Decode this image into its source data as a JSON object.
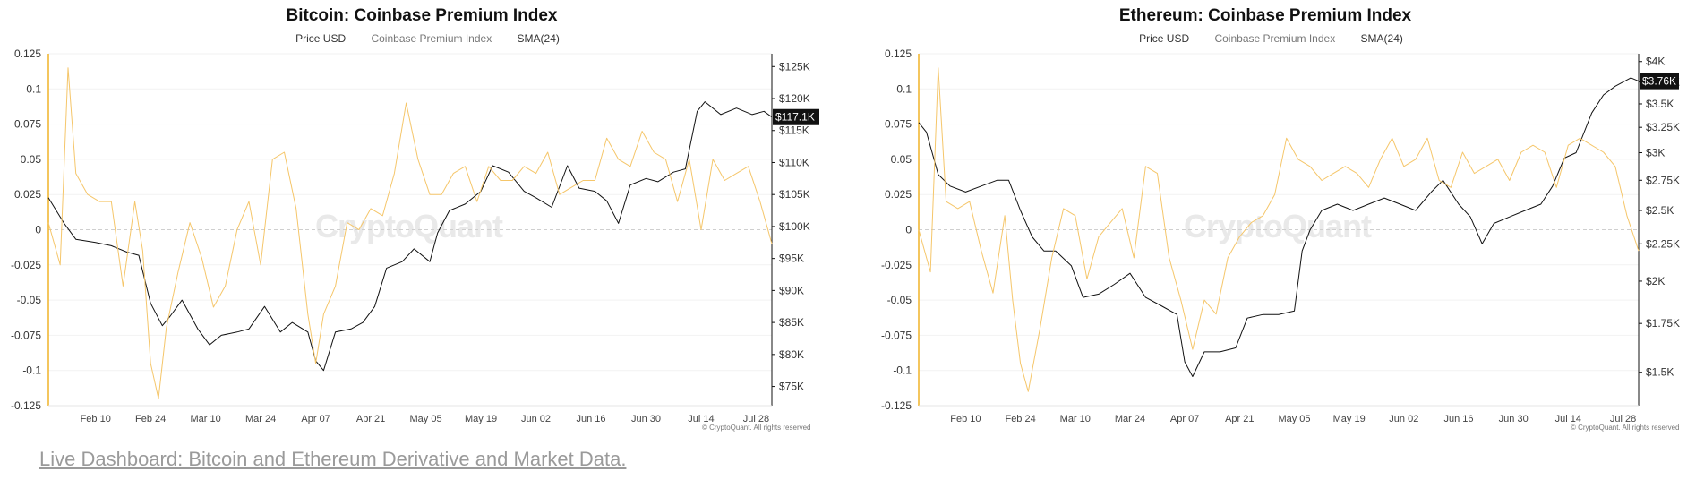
{
  "chart_data": [
    {
      "type": "line",
      "title": "Bitcoin: Coinbase Premium Index",
      "legend": [
        {
          "label": "Price USD",
          "color": "#222222",
          "hidden": false
        },
        {
          "label": "Coinbase Premium Index",
          "color": "#666666",
          "hidden": true
        },
        {
          "label": "SMA(24)",
          "color": "#f5c66a",
          "hidden": false
        }
      ],
      "x_ticks": [
        "Feb 10",
        "Feb 24",
        "Mar 10",
        "Mar 24",
        "Apr 07",
        "Apr 21",
        "May 05",
        "May 19",
        "Jun 02",
        "Jun 16",
        "Jun 30",
        "Jul 14",
        "Jul 28"
      ],
      "x_range": [
        "2025-01-29",
        "2025-08-01"
      ],
      "left_axis_ticks": [
        "0.125",
        "0.1",
        "0.075",
        "0.05",
        "0.025",
        "0",
        "-0.025",
        "-0.05",
        "-0.075",
        "-0.1",
        "-0.125"
      ],
      "left_axis_range": [
        -0.125,
        0.125
      ],
      "right_axis_ticks": [
        "$125K",
        "$120K",
        "$115K",
        "$110K",
        "$105K",
        "$100K",
        "$95K",
        "$90K",
        "$85K",
        "$80K",
        "$75K"
      ],
      "right_axis_range": [
        72000,
        127000
      ],
      "price_label": "$117.1K",
      "watermark": "CryptoQuant",
      "copyright": "© CryptoQuant. All rights reserved",
      "series": [
        {
          "name": "Price USD",
          "axis": "right",
          "color": "#111111",
          "x": [
            "2025-01-29",
            "2025-02-02",
            "2025-02-05",
            "2025-02-10",
            "2025-02-14",
            "2025-02-18",
            "2025-02-21",
            "2025-02-24",
            "2025-02-27",
            "2025-03-01",
            "2025-03-04",
            "2025-03-08",
            "2025-03-11",
            "2025-03-14",
            "2025-03-18",
            "2025-03-21",
            "2025-03-25",
            "2025-03-29",
            "2025-04-01",
            "2025-04-05",
            "2025-04-07",
            "2025-04-09",
            "2025-04-12",
            "2025-04-16",
            "2025-04-19",
            "2025-04-22",
            "2025-04-25",
            "2025-04-29",
            "2025-05-02",
            "2025-05-06",
            "2025-05-08",
            "2025-05-11",
            "2025-05-15",
            "2025-05-19",
            "2025-05-22",
            "2025-05-26",
            "2025-05-30",
            "2025-06-02",
            "2025-06-06",
            "2025-06-10",
            "2025-06-13",
            "2025-06-17",
            "2025-06-20",
            "2025-06-23",
            "2025-06-26",
            "2025-06-30",
            "2025-07-03",
            "2025-07-07",
            "2025-07-10",
            "2025-07-13",
            "2025-07-15",
            "2025-07-19",
            "2025-07-23",
            "2025-07-27",
            "2025-07-30",
            "2025-08-01"
          ],
          "values": [
            104500,
            100500,
            98000,
            97500,
            97000,
            96000,
            95500,
            88000,
            84500,
            86000,
            88500,
            84000,
            81500,
            83000,
            83500,
            84000,
            87500,
            83500,
            85000,
            83500,
            79000,
            77500,
            83500,
            84000,
            85000,
            87500,
            93500,
            94500,
            96500,
            94500,
            99000,
            102500,
            103500,
            105500,
            109500,
            108500,
            105500,
            104500,
            103000,
            109500,
            106000,
            105500,
            104000,
            100500,
            106500,
            107500,
            107000,
            108500,
            109000,
            118000,
            119500,
            117500,
            118500,
            117500,
            118000,
            117100
          ]
        },
        {
          "name": "SMA(24)",
          "axis": "left",
          "color": "#f5c66a",
          "x": [
            "2025-01-29",
            "2025-02-01",
            "2025-02-03",
            "2025-02-05",
            "2025-02-08",
            "2025-02-11",
            "2025-02-14",
            "2025-02-17",
            "2025-02-20",
            "2025-02-22",
            "2025-02-24",
            "2025-02-26",
            "2025-02-28",
            "2025-03-03",
            "2025-03-06",
            "2025-03-09",
            "2025-03-12",
            "2025-03-15",
            "2025-03-18",
            "2025-03-21",
            "2025-03-24",
            "2025-03-27",
            "2025-03-30",
            "2025-04-02",
            "2025-04-05",
            "2025-04-07",
            "2025-04-09",
            "2025-04-12",
            "2025-04-15",
            "2025-04-18",
            "2025-04-21",
            "2025-04-24",
            "2025-04-27",
            "2025-04-30",
            "2025-05-03",
            "2025-05-06",
            "2025-05-09",
            "2025-05-12",
            "2025-05-15",
            "2025-05-18",
            "2025-05-21",
            "2025-05-24",
            "2025-05-27",
            "2025-05-30",
            "2025-06-02",
            "2025-06-05",
            "2025-06-08",
            "2025-06-11",
            "2025-06-14",
            "2025-06-17",
            "2025-06-20",
            "2025-06-23",
            "2025-06-26",
            "2025-06-29",
            "2025-07-02",
            "2025-07-05",
            "2025-07-08",
            "2025-07-11",
            "2025-07-14",
            "2025-07-17",
            "2025-07-20",
            "2025-07-23",
            "2025-07-26",
            "2025-07-29",
            "2025-08-01"
          ],
          "values": [
            0.005,
            -0.025,
            0.115,
            0.04,
            0.025,
            0.02,
            0.02,
            -0.04,
            0.02,
            -0.015,
            -0.095,
            -0.12,
            -0.07,
            -0.03,
            0.005,
            -0.02,
            -0.055,
            -0.04,
            0.0,
            0.02,
            -0.025,
            0.05,
            0.055,
            0.015,
            -0.06,
            -0.095,
            -0.06,
            -0.04,
            0.005,
            0.0,
            0.015,
            0.01,
            0.04,
            0.09,
            0.05,
            0.025,
            0.025,
            0.04,
            0.045,
            0.02,
            0.045,
            0.035,
            0.035,
            0.045,
            0.04,
            0.055,
            0.025,
            0.03,
            0.035,
            0.035,
            0.065,
            0.05,
            0.045,
            0.07,
            0.055,
            0.05,
            0.02,
            0.05,
            0.0,
            0.05,
            0.035,
            0.04,
            0.045,
            0.02,
            -0.01
          ]
        }
      ]
    },
    {
      "type": "line",
      "title": "Ethereum: Coinbase Premium Index",
      "legend": [
        {
          "label": "Price USD",
          "color": "#222222",
          "hidden": false
        },
        {
          "label": "Coinbase Premium Index",
          "color": "#666666",
          "hidden": true
        },
        {
          "label": "SMA(24)",
          "color": "#f5c66a",
          "hidden": false
        }
      ],
      "x_ticks": [
        "Feb 10",
        "Feb 24",
        "Mar 10",
        "Mar 24",
        "Apr 07",
        "Apr 21",
        "May 05",
        "May 19",
        "Jun 02",
        "Jun 16",
        "Jun 30",
        "Jul 14",
        "Jul 28"
      ],
      "x_range": [
        "2025-01-29",
        "2025-08-01"
      ],
      "left_axis_ticks": [
        "0.125",
        "0.1",
        "0.075",
        "0.05",
        "0.025",
        "0",
        "-0.025",
        "-0.05",
        "-0.075",
        "-0.1",
        "-0.125"
      ],
      "left_axis_range": [
        -0.125,
        0.125
      ],
      "right_axis_ticks": [
        "$4K",
        "$3.75K",
        "$3.5K",
        "$3.25K",
        "$3K",
        "$2.75K",
        "$2.5K",
        "$2.25K",
        "$2K",
        "$1.75K",
        "$1.5K"
      ],
      "right_axis_scale": "log",
      "right_axis_range": [
        1350,
        4100
      ],
      "price_label": "$3.76K",
      "watermark": "CryptoQuant",
      "copyright": "© CryptoQuant. All rights reserved",
      "series": [
        {
          "name": "Price USD",
          "axis": "right",
          "color": "#111111",
          "x": [
            "2025-01-29",
            "2025-01-31",
            "2025-02-03",
            "2025-02-06",
            "2025-02-10",
            "2025-02-14",
            "2025-02-18",
            "2025-02-21",
            "2025-02-24",
            "2025-02-27",
            "2025-03-02",
            "2025-03-05",
            "2025-03-09",
            "2025-03-12",
            "2025-03-16",
            "2025-03-20",
            "2025-03-24",
            "2025-03-28",
            "2025-04-01",
            "2025-04-05",
            "2025-04-07",
            "2025-04-09",
            "2025-04-12",
            "2025-04-16",
            "2025-04-20",
            "2025-04-23",
            "2025-04-27",
            "2025-05-01",
            "2025-05-05",
            "2025-05-07",
            "2025-05-09",
            "2025-05-12",
            "2025-05-16",
            "2025-05-20",
            "2025-05-24",
            "2025-05-28",
            "2025-06-01",
            "2025-06-05",
            "2025-06-09",
            "2025-06-12",
            "2025-06-16",
            "2025-06-19",
            "2025-06-22",
            "2025-06-25",
            "2025-06-29",
            "2025-07-03",
            "2025-07-07",
            "2025-07-10",
            "2025-07-13",
            "2025-07-16",
            "2025-07-20",
            "2025-07-23",
            "2025-07-26",
            "2025-07-30",
            "2025-08-01"
          ],
          "values": [
            3300,
            3200,
            2800,
            2700,
            2650,
            2700,
            2750,
            2750,
            2500,
            2300,
            2200,
            2200,
            2100,
            1900,
            1920,
            1980,
            2050,
            1900,
            1850,
            1800,
            1550,
            1480,
            1600,
            1600,
            1620,
            1780,
            1800,
            1800,
            1820,
            2200,
            2350,
            2500,
            2550,
            2500,
            2550,
            2600,
            2550,
            2500,
            2650,
            2750,
            2550,
            2450,
            2250,
            2400,
            2450,
            2500,
            2550,
            2700,
            2950,
            3000,
            3400,
            3600,
            3700,
            3800,
            3760
          ]
        },
        {
          "name": "SMA(24)",
          "axis": "left",
          "color": "#f5c66a",
          "x": [
            "2025-01-29",
            "2025-02-01",
            "2025-02-03",
            "2025-02-05",
            "2025-02-08",
            "2025-02-11",
            "2025-02-14",
            "2025-02-17",
            "2025-02-20",
            "2025-02-22",
            "2025-02-24",
            "2025-02-26",
            "2025-03-01",
            "2025-03-04",
            "2025-03-07",
            "2025-03-10",
            "2025-03-13",
            "2025-03-16",
            "2025-03-19",
            "2025-03-22",
            "2025-03-25",
            "2025-03-28",
            "2025-03-31",
            "2025-04-03",
            "2025-04-06",
            "2025-04-09",
            "2025-04-12",
            "2025-04-15",
            "2025-04-18",
            "2025-04-21",
            "2025-04-24",
            "2025-04-27",
            "2025-04-30",
            "2025-05-03",
            "2025-05-06",
            "2025-05-09",
            "2025-05-12",
            "2025-05-15",
            "2025-05-18",
            "2025-05-21",
            "2025-05-24",
            "2025-05-27",
            "2025-05-30",
            "2025-06-02",
            "2025-06-05",
            "2025-06-08",
            "2025-06-11",
            "2025-06-14",
            "2025-06-17",
            "2025-06-20",
            "2025-06-23",
            "2025-06-26",
            "2025-06-29",
            "2025-07-02",
            "2025-07-05",
            "2025-07-08",
            "2025-07-11",
            "2025-07-14",
            "2025-07-17",
            "2025-07-20",
            "2025-07-23",
            "2025-07-26",
            "2025-07-29",
            "2025-08-01"
          ],
          "values": [
            0.0,
            -0.03,
            0.115,
            0.02,
            0.015,
            0.02,
            -0.015,
            -0.045,
            0.01,
            -0.05,
            -0.095,
            -0.115,
            -0.07,
            -0.02,
            0.015,
            0.01,
            -0.035,
            -0.005,
            0.005,
            0.015,
            -0.02,
            0.045,
            0.04,
            -0.02,
            -0.05,
            -0.085,
            -0.05,
            -0.06,
            -0.02,
            -0.005,
            0.005,
            0.01,
            0.025,
            0.065,
            0.05,
            0.045,
            0.035,
            0.04,
            0.045,
            0.04,
            0.03,
            0.05,
            0.065,
            0.045,
            0.05,
            0.065,
            0.035,
            0.03,
            0.055,
            0.04,
            0.045,
            0.05,
            0.035,
            0.055,
            0.06,
            0.055,
            0.03,
            0.06,
            0.065,
            0.06,
            0.055,
            0.045,
            0.01,
            -0.015
          ]
        }
      ]
    }
  ],
  "footer": {
    "link_text": "Live Dashboard: Bitcoin and Ethereum Derivative and Market Data."
  }
}
